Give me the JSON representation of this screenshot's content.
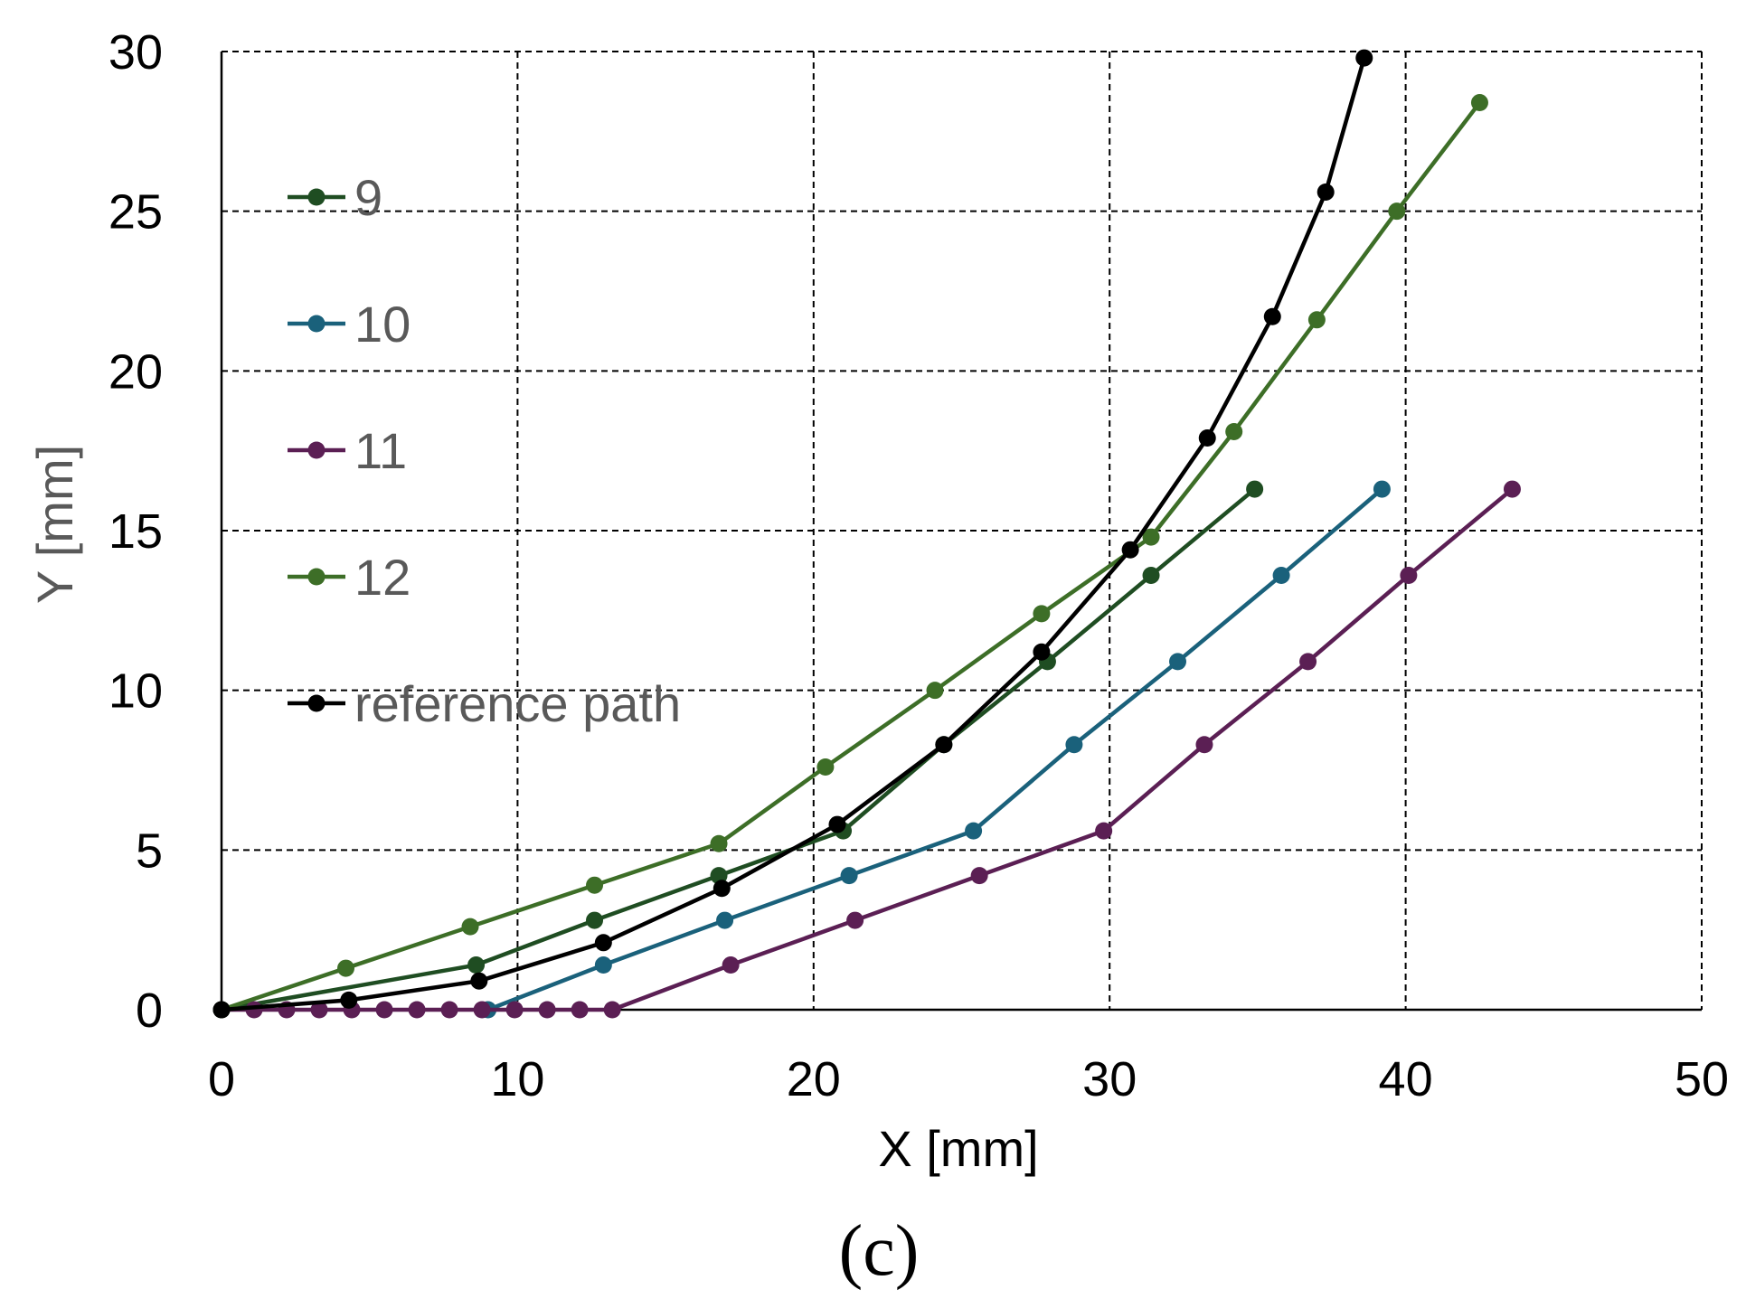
{
  "chart_data": {
    "type": "line",
    "title": "",
    "caption": "(c)",
    "xlabel": "X [mm]",
    "ylabel": "Y [mm]",
    "xlim": [
      0,
      50
    ],
    "ylim": [
      0,
      30
    ],
    "x_ticks": [
      0,
      10,
      20,
      30,
      40,
      50
    ],
    "y_ticks": [
      0,
      5,
      10,
      15,
      20,
      25,
      30
    ],
    "grid": true,
    "legend_position": "left",
    "series": [
      {
        "name": "9",
        "color": "#1f4d22",
        "x": [
          0,
          8.6,
          12.6,
          16.8,
          21.0,
          24.4,
          27.9,
          31.4,
          34.9
        ],
        "y": [
          0,
          1.4,
          2.8,
          4.2,
          5.6,
          8.3,
          10.9,
          13.6,
          16.3
        ]
      },
      {
        "name": "10",
        "color": "#1a617b",
        "x": [
          9.0,
          12.9,
          17.0,
          21.2,
          25.4,
          28.8,
          32.3,
          35.8,
          39.2
        ],
        "y": [
          0,
          1.4,
          2.8,
          4.2,
          5.6,
          8.3,
          10.9,
          13.6,
          16.3
        ]
      },
      {
        "name": "11",
        "color": "#5b1f54",
        "x": [
          0,
          1.1,
          2.2,
          3.3,
          4.4,
          5.5,
          6.6,
          7.7,
          8.8,
          9.9,
          11.0,
          12.1,
          13.2,
          17.2,
          21.4,
          25.6,
          29.8,
          33.2,
          36.7,
          40.1,
          43.6
        ],
        "y": [
          0,
          0,
          0,
          0,
          0,
          0,
          0,
          0,
          0,
          0,
          0,
          0,
          0,
          1.4,
          2.8,
          4.2,
          5.6,
          8.3,
          10.9,
          13.6,
          16.3
        ]
      },
      {
        "name": "12",
        "color": "#3d6e27",
        "x": [
          0,
          4.2,
          8.4,
          12.6,
          16.8,
          20.4,
          24.1,
          27.7,
          31.4,
          34.2,
          37.0,
          39.7,
          42.5
        ],
        "y": [
          0,
          1.3,
          2.6,
          3.9,
          5.2,
          7.6,
          10.0,
          12.4,
          14.8,
          18.1,
          21.6,
          25.0,
          28.4
        ]
      },
      {
        "name": "reference path",
        "color": "#000000",
        "x": [
          0,
          4.3,
          8.7,
          12.9,
          16.9,
          20.8,
          24.4,
          27.7,
          30.7,
          33.3,
          35.5,
          37.3,
          38.6
        ],
        "y": [
          0,
          0.3,
          0.9,
          2.1,
          3.8,
          5.8,
          8.3,
          11.2,
          14.4,
          17.9,
          21.7,
          25.6,
          29.8
        ]
      }
    ]
  },
  "colors": {
    "grid": "#000000",
    "axis_title": "#595959",
    "tick_label": "#000000"
  }
}
